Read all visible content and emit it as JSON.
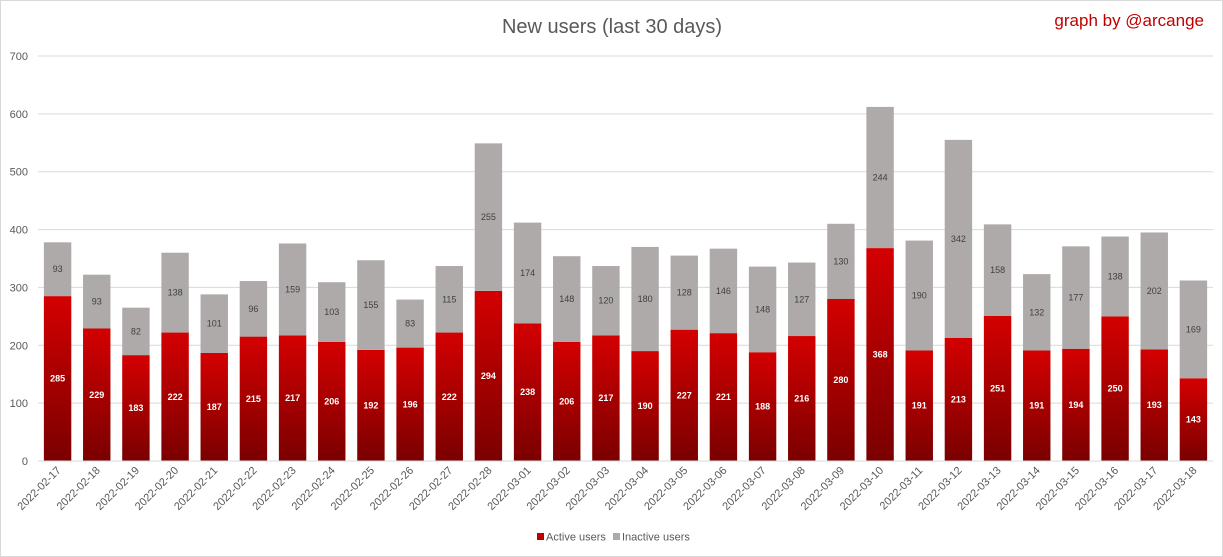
{
  "chart_data": {
    "type": "bar",
    "stacked": true,
    "title": "New users (last 30 days)",
    "credit": "graph by @arcange",
    "xlabel": "",
    "ylabel": "",
    "ylim": [
      0,
      700
    ],
    "yticks": [
      0,
      100,
      200,
      300,
      400,
      500,
      600,
      700
    ],
    "grid": true,
    "legend_position": "bottom",
    "categories": [
      "2022-02-17",
      "2022-02-18",
      "2022-02-19",
      "2022-02-20",
      "2022-02-21",
      "2022-02-22",
      "2022-02-23",
      "2022-02-24",
      "2022-02-25",
      "2022-02-26",
      "2022-02-27",
      "2022-02-28",
      "2022-03-01",
      "2022-03-02",
      "2022-03-03",
      "2022-03-04",
      "2022-03-05",
      "2022-03-06",
      "2022-03-07",
      "2022-03-08",
      "2022-03-09",
      "2022-03-10",
      "2022-03-11",
      "2022-03-12",
      "2022-03-13",
      "2022-03-14",
      "2022-03-15",
      "2022-03-16",
      "2022-03-17",
      "2022-03-18"
    ],
    "series": [
      {
        "name": "Active users",
        "color": "#c00000",
        "values": [
          285,
          229,
          183,
          222,
          187,
          215,
          217,
          206,
          192,
          196,
          222,
          294,
          238,
          206,
          217,
          190,
          227,
          221,
          188,
          216,
          280,
          368,
          191,
          213,
          251,
          191,
          194,
          250,
          193,
          143
        ]
      },
      {
        "name": "Inactive users",
        "color": "#aeaaaa",
        "values": [
          93,
          93,
          82,
          138,
          101,
          96,
          159,
          103,
          155,
          83,
          115,
          255,
          174,
          148,
          120,
          180,
          128,
          146,
          148,
          127,
          130,
          244,
          190,
          342,
          158,
          132,
          177,
          138,
          202,
          169
        ]
      }
    ]
  }
}
